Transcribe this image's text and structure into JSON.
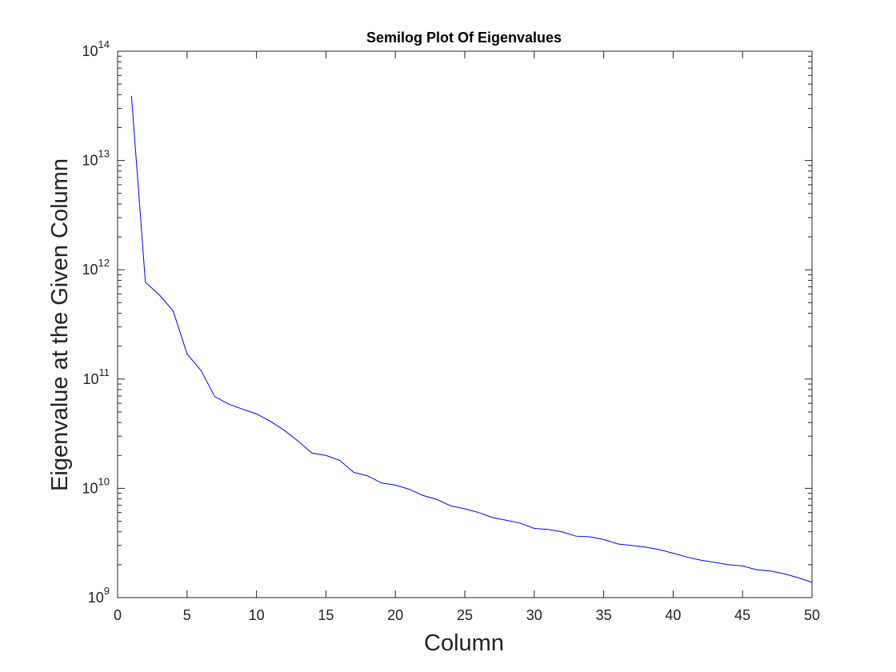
{
  "chart_data": {
    "type": "line",
    "title": "Semilog Plot Of Eigenvalues",
    "xlabel": "Column",
    "ylabel": "Eigenvalue at the Given Column",
    "xlim": [
      0,
      50
    ],
    "ylim": [
      1000000000.0,
      100000000000000.0
    ],
    "yscale": "log",
    "grid": false,
    "legend": "none",
    "x_ticks": [
      {
        "value": 0,
        "label": "0"
      },
      {
        "value": 5,
        "label": "5"
      },
      {
        "value": 10,
        "label": "10"
      },
      {
        "value": 15,
        "label": "15"
      },
      {
        "value": 20,
        "label": "20"
      },
      {
        "value": 25,
        "label": "25"
      },
      {
        "value": 30,
        "label": "30"
      },
      {
        "value": 35,
        "label": "35"
      },
      {
        "value": 40,
        "label": "40"
      },
      {
        "value": 45,
        "label": "45"
      },
      {
        "value": 50,
        "label": "50"
      }
    ],
    "y_ticks": [
      {
        "value": 1000000000.0,
        "base": "10",
        "exponent": "9"
      },
      {
        "value": 10000000000.0,
        "base": "10",
        "exponent": "10"
      },
      {
        "value": 100000000000.0,
        "base": "10",
        "exponent": "11"
      },
      {
        "value": 1000000000000.0,
        "base": "10",
        "exponent": "12"
      },
      {
        "value": 10000000000000.0,
        "base": "10",
        "exponent": "13"
      },
      {
        "value": 100000000000000.0,
        "base": "10",
        "exponent": "14"
      }
    ],
    "series": [
      {
        "color": "#0000ff",
        "x": [
          1,
          2,
          3,
          4,
          5,
          6,
          7,
          8,
          9,
          10,
          11,
          12,
          13,
          14,
          15,
          16,
          17,
          18,
          19,
          20,
          21,
          22,
          23,
          24,
          25,
          26,
          27,
          28,
          29,
          30,
          31,
          32,
          33,
          34,
          35,
          36,
          37,
          38,
          39,
          40,
          41,
          42,
          43,
          44,
          45,
          46,
          47,
          48,
          49,
          50
        ],
        "values": [
          39000000000000.0,
          770000000000.0,
          590000000000.0,
          420000000000.0,
          170000000000.0,
          120000000000.0,
          69000000000.0,
          59000000000.0,
          53000000000.0,
          48000000000.0,
          41000000000.0,
          34000000000.0,
          27000000000.0,
          21000000000.0,
          20000000000.0,
          18000000000.0,
          14000000000.0,
          13000000000.0,
          11200000000.0,
          10700000000.0,
          9800000000.0,
          8600000000.0,
          7900000000.0,
          6900000000.0,
          6500000000.0,
          6000000000.0,
          5400000000.0,
          5100000000.0,
          4800000000.0,
          4300000000.0,
          4200000000.0,
          4000000000.0,
          3650000000.0,
          3600000000.0,
          3400000000.0,
          3100000000.0,
          3000000000.0,
          2900000000.0,
          2750000000.0,
          2550000000.0,
          2350000000.0,
          2200000000.0,
          2100000000.0,
          2000000000.0,
          1950000000.0,
          1800000000.0,
          1750000000.0,
          1650000000.0,
          1520000000.0,
          1380000000.0
        ]
      }
    ]
  }
}
